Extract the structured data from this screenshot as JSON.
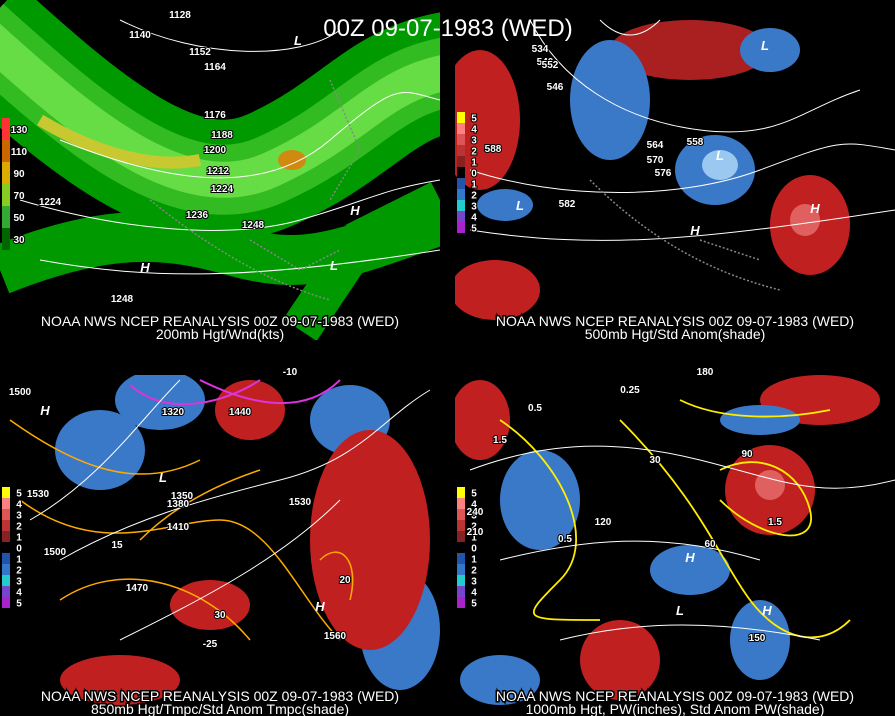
{
  "title": "00Z 09-07-1983 (WED)",
  "panels": [
    {
      "caption": "NOAA NWS NCEP REANALYSIS 00Z 09-07-1983 (WED)",
      "subtitle": "200mb Hgt/Wnd(kts)",
      "scale": [
        "130",
        "110",
        "90",
        "70",
        "50",
        "30"
      ],
      "labels": [
        "1128",
        "1140",
        "1152",
        "1164",
        "1176",
        "1188",
        "1200",
        "1212",
        "1224",
        "1224",
        "1236",
        "1248",
        "1248",
        "L",
        "H",
        "H",
        "L"
      ]
    },
    {
      "caption": "NOAA NWS NCEP REANALYSIS 00Z 09-07-1983 (WED)",
      "subtitle": "500mb Hgt/Std Anom(shade)",
      "scale": [
        "5",
        "4",
        "3",
        "2",
        "1",
        "0",
        "1",
        "2",
        "3",
        "4",
        "5"
      ],
      "labels": [
        "534",
        "540",
        "546",
        "552",
        "558",
        "564",
        "570",
        "576",
        "582",
        "588",
        "L",
        "L",
        "L",
        "H",
        "H"
      ]
    },
    {
      "caption": "NOAA NWS NCEP REANALYSIS 00Z 09-07-1983 (WED)",
      "subtitle": "850mb Hgt/Tmpc/Std Anom Tmpc(shade)",
      "scale": [
        "5",
        "4",
        "3",
        "2",
        "1",
        "0",
        "1",
        "2",
        "3",
        "4",
        "5"
      ],
      "labels": [
        "1500",
        "1530",
        "1470",
        "1440",
        "1410",
        "1380",
        "1350",
        "1320",
        "1560",
        "1500",
        "1530",
        "-10",
        "20",
        "30",
        "-25",
        "15",
        "H",
        "L",
        "H"
      ]
    },
    {
      "caption": "NOAA NWS NCEP REANALYSIS 00Z 09-07-1983 (WED)",
      "subtitle": "1000mb Hgt, PW(inches), Std Anom PW(shade)",
      "scale": [
        "5",
        "4",
        "3",
        "2",
        "1",
        "0",
        "1",
        "2",
        "3",
        "4",
        "5"
      ],
      "labels": [
        "0.25",
        "0.5",
        "0.5",
        "1.5",
        "1.5",
        "30",
        "60",
        "90",
        "120",
        "150",
        "180",
        "210",
        "240",
        "H",
        "L",
        "H"
      ]
    }
  ]
}
